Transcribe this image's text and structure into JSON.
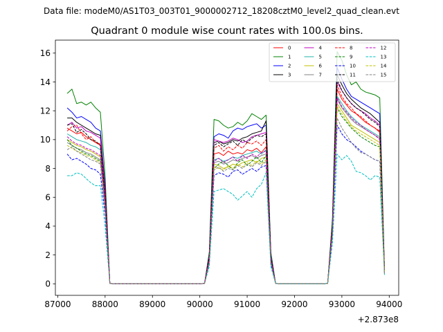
{
  "chart_data": {
    "type": "line",
    "suptitle": "Data file: modeM0/AS1T03_003T01_9000002712_18208cztM0_level2_quad_clean.evt",
    "title": "Quadrant 0 module wise count rates with 100.0s bins.",
    "xlabel": "",
    "ylabel": "",
    "x_offset_label": "+2.873e8",
    "xlim": [
      86950,
      94200
    ],
    "ylim": [
      -0.8,
      16.9
    ],
    "xticks": [
      87000,
      88000,
      89000,
      90000,
      91000,
      92000,
      93000,
      94000
    ],
    "xtick_labels": [
      "87000",
      "88000",
      "89000",
      "90000",
      "91000",
      "92000",
      "93000",
      "94000"
    ],
    "yticks": [
      0,
      2,
      4,
      6,
      8,
      10,
      12,
      14,
      16
    ],
    "ytick_labels": [
      "0",
      "2",
      "4",
      "6",
      "8",
      "10",
      "12",
      "14",
      "16"
    ],
    "grid": false,
    "legend_position": "top-right",
    "legend_columns": 4,
    "x": [
      87200,
      87300,
      87400,
      87500,
      87600,
      87700,
      87800,
      87900,
      88000,
      88100,
      88200,
      88300,
      88400,
      88500,
      88600,
      88700,
      88800,
      88900,
      89000,
      89100,
      89200,
      89300,
      89400,
      89500,
      89600,
      89700,
      89800,
      89900,
      90000,
      90100,
      90200,
      90300,
      90400,
      90500,
      90600,
      90700,
      90800,
      90900,
      91000,
      91100,
      91200,
      91300,
      91400,
      91500,
      91600,
      91700,
      91800,
      91900,
      92000,
      92100,
      92200,
      92300,
      92400,
      92500,
      92600,
      92700,
      92800,
      92900,
      93000,
      93100,
      93200,
      93300,
      93400,
      93500,
      93600,
      93700,
      93800,
      93900
    ],
    "series": [
      {
        "name": "0",
        "color": "#ff0000",
        "dash": "solid",
        "values": [
          10.8,
          10.6,
          10.4,
          10.5,
          10.2,
          10.0,
          9.8,
          9.6,
          6.0,
          0.03,
          0,
          0,
          0,
          0,
          0,
          0,
          0,
          0,
          0,
          0,
          0,
          0,
          0,
          0,
          0,
          0,
          0,
          0,
          0,
          0.03,
          1.8,
          9.0,
          9.1,
          8.9,
          9.2,
          9.0,
          9.1,
          9.0,
          9.3,
          9.2,
          9.4,
          9.1,
          9.5,
          1.8,
          0.03,
          0,
          0,
          0,
          0,
          0,
          0,
          0,
          0,
          0,
          0,
          0.03,
          4.0,
          13.5,
          12.8,
          12.4,
          12.0,
          11.8,
          11.5,
          11.2,
          11.0,
          10.8,
          10.5,
          0.8
        ]
      },
      {
        "name": "1",
        "color": "#008000",
        "dash": "solid",
        "values": [
          13.2,
          13.5,
          12.5,
          12.6,
          12.4,
          12.6,
          12.2,
          11.9,
          7.5,
          0.03,
          0,
          0,
          0,
          0,
          0,
          0,
          0,
          0,
          0,
          0,
          0,
          0,
          0,
          0,
          0,
          0,
          0,
          0,
          0,
          0.03,
          2.2,
          11.4,
          11.3,
          11.0,
          10.8,
          10.9,
          11.2,
          11.0,
          11.3,
          11.8,
          11.6,
          11.4,
          11.7,
          2.2,
          0.03,
          0,
          0,
          0,
          0,
          0,
          0,
          0,
          0,
          0,
          0,
          0.03,
          4.5,
          16.1,
          15.5,
          14.5,
          13.8,
          14.0,
          13.5,
          13.3,
          13.2,
          13.1,
          12.9,
          1.0
        ]
      },
      {
        "name": "2",
        "color": "#0000ff",
        "dash": "solid",
        "values": [
          12.2,
          11.9,
          11.5,
          11.6,
          11.4,
          11.2,
          10.8,
          10.6,
          6.8,
          0.03,
          0,
          0,
          0,
          0,
          0,
          0,
          0,
          0,
          0,
          0,
          0,
          0,
          0,
          0,
          0,
          0,
          0,
          0,
          0,
          0.03,
          2.0,
          10.2,
          10.4,
          10.3,
          10.1,
          10.6,
          10.8,
          10.7,
          10.9,
          11.0,
          11.1,
          10.8,
          11.0,
          2.0,
          0.03,
          0,
          0,
          0,
          0,
          0,
          0,
          0,
          0,
          0,
          0,
          0.03,
          4.2,
          15.0,
          14.2,
          13.5,
          13.0,
          12.8,
          12.6,
          12.4,
          12.2,
          12.0,
          11.8,
          0.9
        ]
      },
      {
        "name": "3",
        "color": "#000000",
        "dash": "solid",
        "values": [
          11.5,
          11.5,
          11.2,
          11.0,
          10.8,
          10.6,
          10.4,
          10.3,
          6.5,
          0.03,
          0,
          0,
          0,
          0,
          0,
          0,
          0,
          0,
          0,
          0,
          0,
          0,
          0,
          0,
          0,
          0,
          0,
          0,
          0,
          0.03,
          1.9,
          9.8,
          9.9,
          9.7,
          9.8,
          10.0,
          9.9,
          10.1,
          10.2,
          10.4,
          10.5,
          10.6,
          11.3,
          1.9,
          0.03,
          0,
          0,
          0,
          0,
          0,
          0,
          0,
          0,
          0,
          0,
          0.03,
          4.1,
          14.5,
          13.8,
          13.2,
          12.8,
          12.5,
          12.2,
          12.0,
          11.8,
          11.5,
          11.2,
          0.9
        ]
      },
      {
        "name": "4",
        "color": "#bf00bf",
        "dash": "solid",
        "values": [
          11.0,
          11.2,
          10.8,
          10.9,
          10.6,
          10.5,
          10.3,
          10.1,
          6.4,
          0.03,
          0,
          0,
          0,
          0,
          0,
          0,
          0,
          0,
          0,
          0,
          0,
          0,
          0,
          0,
          0,
          0,
          0,
          0,
          0,
          0.03,
          1.9,
          10.0,
          9.9,
          9.8,
          9.9,
          10.1,
          10.0,
          9.8,
          9.9,
          10.2,
          10.3,
          10.4,
          10.5,
          1.9,
          0.03,
          0,
          0,
          0,
          0,
          0,
          0,
          0,
          0,
          0,
          0,
          0.03,
          4.0,
          14.0,
          13.4,
          12.9,
          12.5,
          12.2,
          12.0,
          11.8,
          11.5,
          11.3,
          11.0,
          0.9
        ]
      },
      {
        "name": "5",
        "color": "#20b2aa",
        "dash": "solid",
        "values": [
          10.4,
          10.2,
          10.0,
          9.9,
          9.8,
          9.6,
          9.5,
          9.3,
          5.8,
          0.03,
          0,
          0,
          0,
          0,
          0,
          0,
          0,
          0,
          0,
          0,
          0,
          0,
          0,
          0,
          0,
          0,
          0,
          0,
          0,
          0.03,
          1.7,
          8.6,
          8.7,
          8.5,
          8.6,
          8.8,
          8.7,
          8.9,
          9.0,
          9.1,
          9.2,
          9.0,
          9.3,
          1.7,
          0.03,
          0,
          0,
          0,
          0,
          0,
          0,
          0,
          0,
          0,
          0,
          0.03,
          3.8,
          13.0,
          12.5,
          12.0,
          11.6,
          11.3,
          11.0,
          10.8,
          10.6,
          10.4,
          10.2,
          0.8
        ]
      },
      {
        "name": "6",
        "color": "#bfbf00",
        "dash": "solid",
        "values": [
          10.0,
          9.8,
          9.6,
          9.5,
          9.3,
          9.2,
          9.0,
          8.8,
          5.6,
          0.03,
          0,
          0,
          0,
          0,
          0,
          0,
          0,
          0,
          0,
          0,
          0,
          0,
          0,
          0,
          0,
          0,
          0,
          0,
          0,
          0.03,
          1.6,
          8.3,
          8.2,
          8.0,
          8.1,
          8.3,
          8.2,
          8.4,
          8.5,
          8.6,
          8.4,
          8.7,
          8.8,
          1.6,
          0.03,
          0,
          0,
          0,
          0,
          0,
          0,
          0,
          0,
          0,
          0,
          0.03,
          3.6,
          12.5,
          12.0,
          11.5,
          11.0,
          10.8,
          10.6,
          10.4,
          10.2,
          10.0,
          9.8,
          0.8
        ]
      },
      {
        "name": "7",
        "color": "#808080",
        "dash": "solid",
        "values": [
          9.8,
          9.6,
          9.4,
          9.3,
          9.1,
          9.0,
          8.8,
          8.6,
          5.5,
          0.03,
          0,
          0,
          0,
          0,
          0,
          0,
          0,
          0,
          0,
          0,
          0,
          0,
          0,
          0,
          0,
          0,
          0,
          0,
          0,
          0.03,
          1.6,
          8.4,
          8.5,
          8.3,
          8.4,
          8.6,
          8.5,
          8.7,
          8.8,
          8.9,
          8.7,
          8.9,
          9.0,
          1.6,
          0.03,
          0,
          0,
          0,
          0,
          0,
          0,
          0,
          0,
          0,
          0,
          0.03,
          3.7,
          12.8,
          12.2,
          11.8,
          11.4,
          11.1,
          10.9,
          10.7,
          10.5,
          10.3,
          10.1,
          0.8
        ]
      },
      {
        "name": "8",
        "color": "#ff0000",
        "dash": "dashed",
        "values": [
          10.6,
          10.9,
          11.0,
          10.4,
          10.0,
          10.2,
          9.8,
          9.7,
          6.2,
          0.03,
          0,
          0,
          0,
          0,
          0,
          0,
          0,
          0,
          0,
          0,
          0,
          0,
          0,
          0,
          0,
          0,
          0,
          0,
          0,
          0.03,
          1.8,
          9.4,
          9.6,
          9.2,
          9.5,
          9.3,
          9.6,
          9.4,
          9.8,
          9.7,
          9.9,
          9.6,
          10.0,
          1.8,
          0.03,
          0,
          0,
          0,
          0,
          0,
          0,
          0,
          0,
          0,
          0,
          0.03,
          4.0,
          13.8,
          13.0,
          12.5,
          12.2,
          11.8,
          11.6,
          11.3,
          11.0,
          10.8,
          10.6,
          0.8
        ]
      },
      {
        "name": "9",
        "color": "#008000",
        "dash": "dashed",
        "values": [
          10.0,
          9.6,
          9.4,
          9.2,
          9.0,
          8.9,
          8.7,
          8.5,
          5.4,
          0.03,
          0,
          0,
          0,
          0,
          0,
          0,
          0,
          0,
          0,
          0,
          0,
          0,
          0,
          0,
          0,
          0,
          0,
          0,
          0,
          0.03,
          1.5,
          8.0,
          8.3,
          8.5,
          8.2,
          7.9,
          8.4,
          8.6,
          8.2,
          8.5,
          8.8,
          8.4,
          8.9,
          1.5,
          0.03,
          0,
          0,
          0,
          0,
          0,
          0,
          0,
          0,
          0,
          0,
          0.03,
          3.5,
          12.2,
          11.6,
          11.2,
          10.8,
          10.5,
          10.2,
          10.0,
          9.8,
          9.6,
          9.5,
          0.7
        ]
      },
      {
        "name": "10",
        "color": "#0000ff",
        "dash": "dashed",
        "values": [
          9.0,
          8.6,
          8.7,
          8.5,
          8.3,
          8.0,
          7.9,
          7.6,
          4.8,
          0.03,
          0,
          0,
          0,
          0,
          0,
          0,
          0,
          0,
          0,
          0,
          0,
          0,
          0,
          0,
          0,
          0,
          0,
          0,
          0,
          0.03,
          1.4,
          7.5,
          7.7,
          7.6,
          7.4,
          7.8,
          7.9,
          7.6,
          7.8,
          8.0,
          7.8,
          8.1,
          8.2,
          1.4,
          0.03,
          0,
          0,
          0,
          0,
          0,
          0,
          0,
          0,
          0,
          0,
          0.03,
          3.3,
          11.0,
          10.4,
          10.0,
          9.8,
          9.5,
          9.2,
          9.0,
          8.8,
          8.6,
          8.5,
          0.7
        ]
      },
      {
        "name": "11",
        "color": "#000000",
        "dash": "dashed",
        "values": [
          11.0,
          11.1,
          10.5,
          10.7,
          10.4,
          10.0,
          9.9,
          9.6,
          6.0,
          0.03,
          0,
          0,
          0,
          0,
          0,
          0,
          0,
          0,
          0,
          0,
          0,
          0,
          0,
          0,
          0,
          0,
          0,
          0,
          0,
          0.03,
          1.8,
          9.6,
          9.8,
          9.5,
          9.7,
          9.9,
          9.6,
          10.0,
          9.8,
          10.1,
          10.3,
          10.2,
          10.4,
          1.8,
          0.03,
          0,
          0,
          0,
          0,
          0,
          0,
          0,
          0,
          0,
          0,
          0.03,
          4.0,
          14.2,
          13.4,
          12.9,
          12.5,
          12.2,
          12.0,
          11.7,
          11.4,
          11.2,
          10.9,
          0.9
        ]
      },
      {
        "name": "12",
        "color": "#bf00bf",
        "dash": "dashed",
        "values": [
          10.2,
          9.9,
          9.7,
          9.6,
          9.4,
          9.3,
          9.1,
          8.9,
          5.6,
          0.03,
          0,
          0,
          0,
          0,
          0,
          0,
          0,
          0,
          0,
          0,
          0,
          0,
          0,
          0,
          0,
          0,
          0,
          0,
          0,
          0.03,
          1.6,
          8.5,
          8.7,
          8.4,
          8.6,
          8.8,
          8.5,
          8.9,
          8.7,
          9.0,
          8.8,
          9.1,
          9.2,
          1.6,
          0.03,
          0,
          0,
          0,
          0,
          0,
          0,
          0,
          0,
          0,
          0,
          0.03,
          3.7,
          12.9,
          12.3,
          11.9,
          11.5,
          11.2,
          11.0,
          10.7,
          10.5,
          10.3,
          10.0,
          0.8
        ]
      },
      {
        "name": "13",
        "color": "#00bfbf",
        "dash": "dashed",
        "values": [
          7.5,
          7.5,
          7.7,
          7.6,
          7.3,
          7.0,
          6.8,
          6.8,
          4.0,
          0.03,
          0,
          0,
          0,
          0,
          0,
          0,
          0,
          0,
          0,
          0,
          0,
          0,
          0,
          0,
          0,
          0,
          0,
          0,
          0,
          0.03,
          1.2,
          6.4,
          6.5,
          6.6,
          6.4,
          6.2,
          5.8,
          6.1,
          6.4,
          6.0,
          6.6,
          6.9,
          7.7,
          1.2,
          0.03,
          0,
          0,
          0,
          0,
          0,
          0,
          0,
          0,
          0,
          0,
          0.03,
          2.8,
          9.0,
          8.6,
          8.9,
          8.5,
          7.8,
          7.7,
          7.5,
          7.2,
          7.5,
          7.4,
          0.6
        ]
      },
      {
        "name": "14",
        "color": "#bfbf00",
        "dash": "dashed",
        "values": [
          9.6,
          9.4,
          9.2,
          9.1,
          8.9,
          8.8,
          8.6,
          8.4,
          5.3,
          0.03,
          0,
          0,
          0,
          0,
          0,
          0,
          0,
          0,
          0,
          0,
          0,
          0,
          0,
          0,
          0,
          0,
          0,
          0,
          0,
          0.03,
          1.5,
          8.1,
          8.0,
          7.9,
          8.2,
          8.0,
          8.3,
          8.1,
          8.4,
          8.2,
          8.5,
          8.3,
          8.6,
          1.5,
          0.03,
          0,
          0,
          0,
          0,
          0,
          0,
          0,
          0,
          0,
          0,
          0.03,
          3.5,
          12.3,
          11.8,
          11.3,
          10.9,
          10.6,
          10.4,
          10.2,
          10.0,
          9.8,
          9.6,
          0.7
        ]
      },
      {
        "name": "15",
        "color": "#808080",
        "dash": "dashed",
        "values": [
          9.3,
          9.5,
          9.2,
          9.0,
          8.8,
          8.6,
          8.5,
          8.3,
          5.2,
          0.03,
          0,
          0,
          0,
          0,
          0,
          0,
          0,
          0,
          0,
          0,
          0,
          0,
          0,
          0,
          0,
          0,
          0,
          0,
          0,
          0.03,
          1.5,
          7.9,
          8.1,
          7.8,
          8.0,
          7.9,
          8.2,
          8.0,
          8.3,
          8.1,
          8.4,
          8.2,
          8.5,
          1.5,
          0.03,
          0,
          0,
          0,
          0,
          0,
          0,
          0,
          0,
          0,
          0,
          0.03,
          3.4,
          11.5,
          10.8,
          10.3,
          9.8,
          9.4,
          9.1,
          9.0,
          8.8,
          8.6,
          8.5,
          0.7
        ]
      }
    ]
  }
}
